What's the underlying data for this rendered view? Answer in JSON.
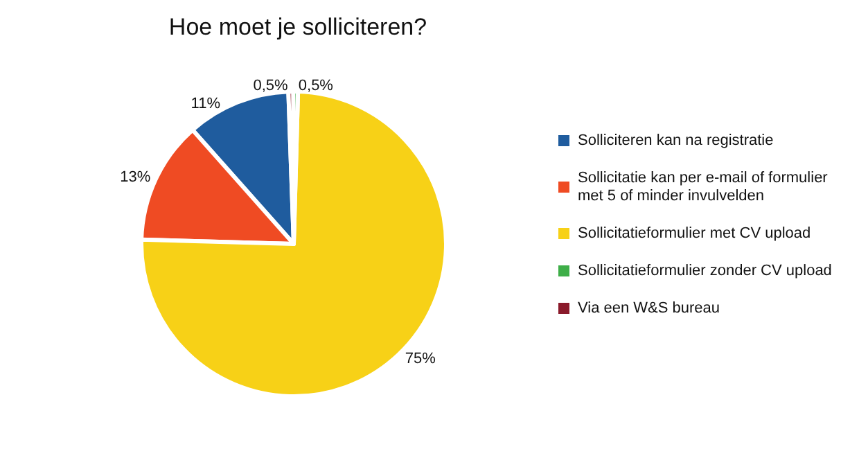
{
  "chart_data": {
    "type": "pie",
    "title": "Hoe moet je solliciteren?",
    "categories": [
      "Solliciteren kan na registratie",
      "Sollicitatie kan per e-mail of formulier met 5 of minder invulvelden",
      "Sollicitatieformulier met CV upload",
      "Sollicitatieformulier zonder CV upload",
      "Via een W&S bureau"
    ],
    "values": [
      11,
      13,
      75,
      0.5,
      0.5
    ],
    "value_labels": [
      "11%",
      "13%",
      "75%",
      "0,5%",
      "0,5%"
    ],
    "colors": [
      "#1f5c9e",
      "#ef4b23",
      "#f7d117",
      "#3eae48",
      "#8a1a2b"
    ],
    "legend": "right"
  }
}
